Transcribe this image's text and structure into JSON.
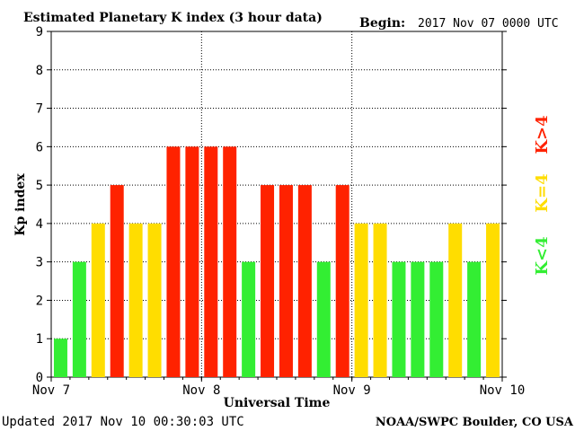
{
  "header": {
    "title": "Estimated Planetary K index (3 hour data)",
    "begin_label": "Begin:",
    "begin_value": "2017 Nov 07 0000 UTC"
  },
  "footer": {
    "updated": "Updated 2017 Nov 10 00:30:03 UTC",
    "credit": "NOAA/SWPC Boulder, CO USA"
  },
  "legend": [
    {
      "label": "K<4",
      "color": "#33ee33"
    },
    {
      "label": "K=4",
      "color": "#ffdd00"
    },
    {
      "label": "K>4",
      "color": "#ff2200"
    }
  ],
  "chart_data": {
    "type": "bar",
    "title": "Estimated Planetary K index (3 hour data)",
    "xlabel": "Universal Time",
    "ylabel": "Kp index",
    "ylim": [
      0,
      9
    ],
    "yticks": [
      0,
      1,
      2,
      3,
      4,
      5,
      6,
      7,
      8,
      9
    ],
    "xticks": [
      "Nov 7",
      "Nov 8",
      "Nov 9",
      "Nov 10"
    ],
    "grid": true,
    "bar_colors": {
      "low": "#33ee33",
      "equal": "#ffdd00",
      "high": "#ff2200"
    },
    "values": [
      1,
      3,
      4,
      5,
      4,
      4,
      6,
      6,
      6,
      6,
      3,
      5,
      5,
      5,
      3,
      5,
      4,
      4,
      3,
      3,
      3,
      4,
      3,
      4
    ]
  }
}
